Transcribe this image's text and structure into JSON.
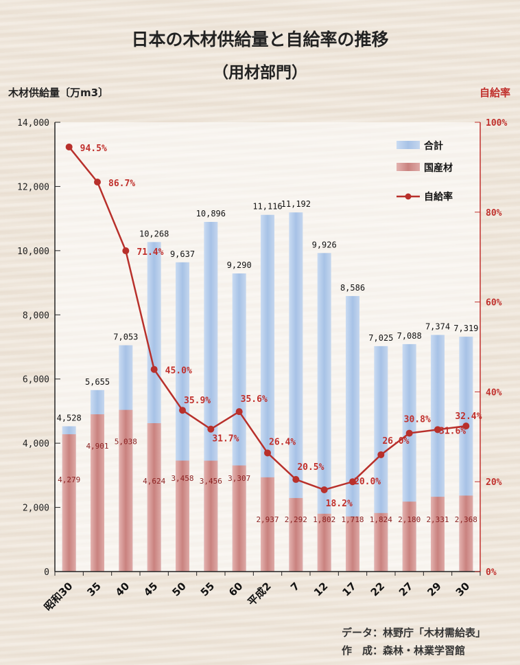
{
  "chart_data": {
    "type": "bar",
    "title": "日本の木材供給量と自給率の推移",
    "subtitle": "（用材部門）",
    "ylabel": "木材供給量〔万m3〕",
    "y2label": "自給率",
    "ylim": [
      0,
      14000
    ],
    "y2lim": [
      0,
      100
    ],
    "yticks": [
      "0",
      "2,000",
      "4,000",
      "6,000",
      "8,000",
      "10,000",
      "12,000",
      "14,000"
    ],
    "y2ticks": [
      "0%",
      "20%",
      "40%",
      "60%",
      "80%",
      "100%"
    ],
    "categories": [
      "昭和30",
      "35",
      "40",
      "45",
      "50",
      "55",
      "60",
      "平成2",
      "7",
      "12",
      "17",
      "22",
      "27",
      "29",
      "30"
    ],
    "series": [
      {
        "name": "合計",
        "type": "bar",
        "color": "#a9c4e6",
        "values": [
          4528,
          5655,
          7053,
          10268,
          9637,
          10896,
          9290,
          11116,
          11192,
          9926,
          8586,
          7025,
          7088,
          7374,
          7319
        ],
        "labels": [
          "4,528",
          "5,655",
          "7,053",
          "10,268",
          "9,637",
          "10,896",
          "9,290",
          "11,116",
          "11,192",
          "9,926",
          "8,586",
          "7,025",
          "7,088",
          "7,374",
          "7,319"
        ]
      },
      {
        "name": "国産材",
        "type": "bar",
        "color": "#cd8a87",
        "values": [
          4279,
          4901,
          5038,
          4624,
          3458,
          3456,
          3307,
          2937,
          2292,
          1802,
          1718,
          1824,
          2180,
          2331,
          2368
        ],
        "labels": [
          "4,279",
          "4,901",
          "5,038",
          "4,624",
          "3,458",
          "3,456",
          "3,307",
          "2,937",
          "2,292",
          "1,802",
          "1,718",
          "1,824",
          "2,180",
          "2,331",
          "2,368"
        ]
      },
      {
        "name": "自給率",
        "type": "line",
        "color": "#b8302b",
        "values": [
          94.5,
          86.7,
          71.4,
          45.0,
          35.9,
          31.7,
          35.6,
          26.4,
          20.5,
          18.2,
          20.0,
          26.0,
          30.8,
          31.6,
          32.4
        ],
        "labels": [
          "94.5%",
          "86.7%",
          "71.4%",
          "45.0%",
          "35.9%",
          "31.7%",
          "35.6%",
          "26.4%",
          "20.5%",
          "18.2%",
          "20.0%",
          "26.0%",
          "30.8%",
          "31.6%",
          "32.4%"
        ]
      }
    ],
    "legend": "top-right",
    "grid": false
  },
  "source": {
    "line1": "データ：林野庁「木材需給表」",
    "line2": "作　成：森林・林業学習館"
  }
}
